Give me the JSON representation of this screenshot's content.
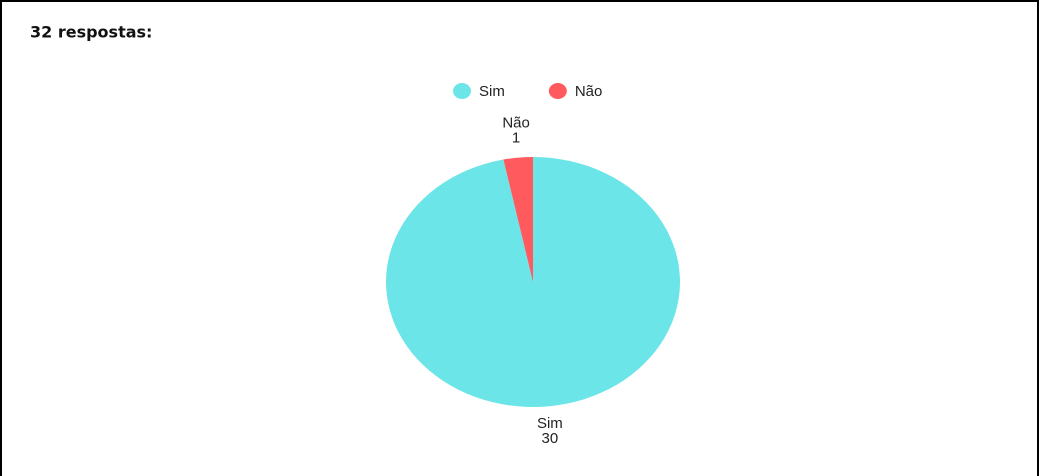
{
  "chart_data": {
    "type": "pie",
    "title": "32 respostas:",
    "categories": [
      "Sim",
      "Não"
    ],
    "values": [
      30,
      1
    ],
    "colors": [
      "#6ce5e8",
      "#ff5a5e"
    ],
    "legend": "top"
  }
}
